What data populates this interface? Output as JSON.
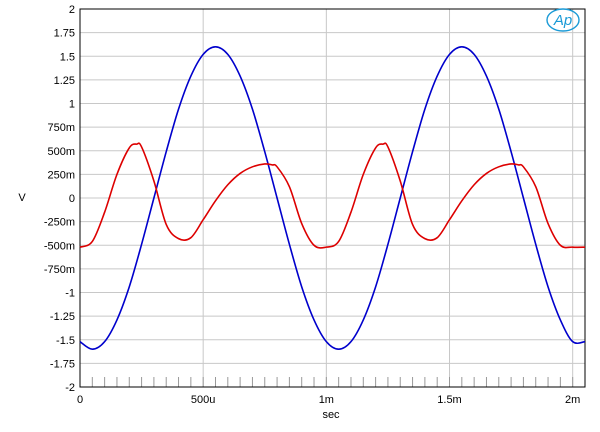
{
  "chart_data": {
    "type": "line",
    "xlabel": "sec",
    "ylabel": "V",
    "xlim": [
      0,
      0.00205
    ],
    "ylim": [
      -2,
      2
    ],
    "grid": true,
    "logo": "Ap",
    "x_ticks": [
      {
        "value": 0,
        "label": "0"
      },
      {
        "value": 0.0005,
        "label": "500u"
      },
      {
        "value": 0.001,
        "label": "1m"
      },
      {
        "value": 0.0015,
        "label": "1.5m"
      },
      {
        "value": 0.002,
        "label": "2m"
      }
    ],
    "y_ticks": [
      {
        "value": 2,
        "label": "2"
      },
      {
        "value": 1.75,
        "label": "1.75"
      },
      {
        "value": 1.5,
        "label": "1.5"
      },
      {
        "value": 1.25,
        "label": "1.25"
      },
      {
        "value": 1,
        "label": "1"
      },
      {
        "value": 0.75,
        "label": "750m"
      },
      {
        "value": 0.5,
        "label": "500m"
      },
      {
        "value": 0.25,
        "label": "250m"
      },
      {
        "value": 0,
        "label": "0"
      },
      {
        "value": -0.25,
        "label": "-250m"
      },
      {
        "value": -0.5,
        "label": "-500m"
      },
      {
        "value": -0.75,
        "label": "-750m"
      },
      {
        "value": -1,
        "label": "-1"
      },
      {
        "value": -1.25,
        "label": "-1.25"
      },
      {
        "value": -1.5,
        "label": "-1.5"
      },
      {
        "value": -1.75,
        "label": "-1.75"
      },
      {
        "value": -2,
        "label": "-2"
      }
    ],
    "series": [
      {
        "color": "#0000cc",
        "x": [
          0,
          5e-05,
          0.0001,
          0.00015,
          0.0002,
          0.00025,
          0.0003,
          0.00035,
          0.0004,
          0.00045,
          0.0005,
          0.00055,
          0.0006,
          0.00065,
          0.0007,
          0.00075,
          0.0008,
          0.00085,
          0.0009,
          0.00095,
          0.001,
          0.00105,
          0.0011,
          0.00115,
          0.0012,
          0.00125,
          0.0013,
          0.00135,
          0.0014,
          0.00145,
          0.0015,
          0.00155,
          0.0016,
          0.00165,
          0.0017,
          0.00175,
          0.0018,
          0.00185,
          0.0019,
          0.00195,
          0.002,
          0.00205
        ],
        "y": [
          -1.52,
          -1.6,
          -1.52,
          -1.29,
          -0.94,
          -0.49,
          0.0,
          0.49,
          0.94,
          1.29,
          1.52,
          1.6,
          1.52,
          1.29,
          0.94,
          0.49,
          0.0,
          -0.49,
          -0.94,
          -1.29,
          -1.52,
          -1.6,
          -1.52,
          -1.29,
          -0.94,
          -0.49,
          0.0,
          0.49,
          0.94,
          1.29,
          1.52,
          1.6,
          1.52,
          1.29,
          0.94,
          0.49,
          0.0,
          -0.49,
          -0.94,
          -1.29,
          -1.52,
          -1.52
        ]
      },
      {
        "color": "#dd0000",
        "x": [
          0,
          5e-05,
          0.0001,
          0.00015,
          0.0002,
          0.00023,
          0.00025,
          0.0003,
          0.00035,
          0.0004,
          0.00045,
          0.0005,
          0.00055,
          0.0006,
          0.00065,
          0.0007,
          0.00075,
          0.00078,
          0.0008,
          0.00085,
          0.0009,
          0.00095,
          0.001,
          0.00105,
          0.0011,
          0.00115,
          0.0012,
          0.00123,
          0.00125,
          0.0013,
          0.00135,
          0.0014,
          0.00145,
          0.0015,
          0.00155,
          0.0016,
          0.00165,
          0.0017,
          0.00175,
          0.00178,
          0.0018,
          0.00185,
          0.0019,
          0.00195,
          0.002,
          0.00205
        ],
        "y": [
          -0.52,
          -0.46,
          -0.15,
          0.25,
          0.53,
          0.57,
          0.54,
          0.18,
          -0.28,
          -0.43,
          -0.42,
          -0.23,
          -0.03,
          0.14,
          0.26,
          0.33,
          0.36,
          0.35,
          0.33,
          0.12,
          -0.27,
          -0.5,
          -0.52,
          -0.46,
          -0.15,
          0.25,
          0.53,
          0.57,
          0.54,
          0.18,
          -0.28,
          -0.43,
          -0.42,
          -0.23,
          -0.03,
          0.14,
          0.26,
          0.33,
          0.36,
          0.35,
          0.33,
          0.12,
          -0.27,
          -0.5,
          -0.52,
          -0.52
        ]
      }
    ]
  }
}
